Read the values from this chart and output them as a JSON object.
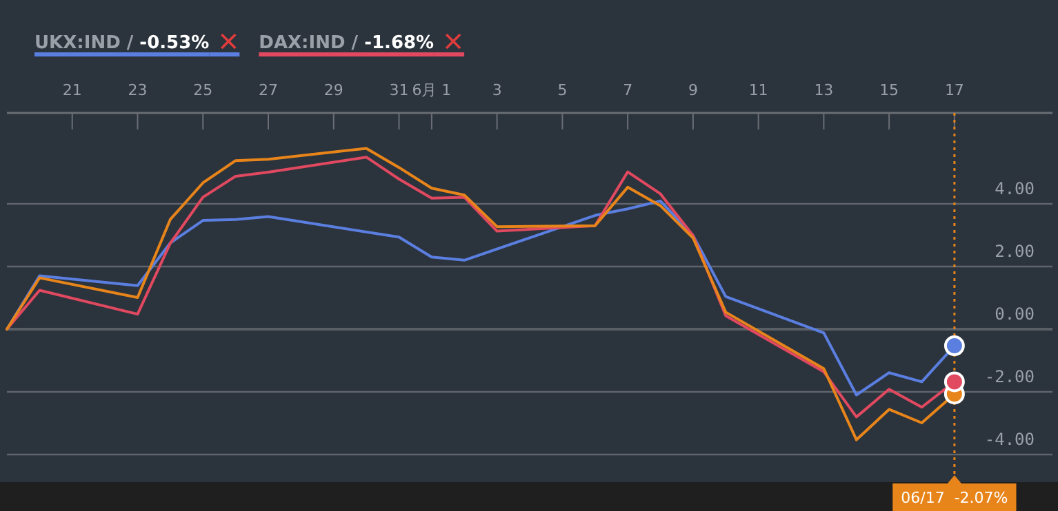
{
  "chart_data": {
    "type": "line",
    "xlim": [
      "--05-19",
      "--06-20"
    ],
    "xticks": [
      {
        "value": "--05-21",
        "label": "21"
      },
      {
        "value": "--05-23",
        "label": "23"
      },
      {
        "value": "--05-25",
        "label": "25"
      },
      {
        "value": "--05-27",
        "label": "27"
      },
      {
        "value": "--05-29",
        "label": "29"
      },
      {
        "value": "--05-31",
        "label": "31"
      },
      {
        "value": "--06-01",
        "label": "6月 1"
      },
      {
        "value": "--06-03",
        "label": "3"
      },
      {
        "value": "--06-05",
        "label": "5"
      },
      {
        "value": "--06-07",
        "label": "7"
      },
      {
        "value": "--06-09",
        "label": "9"
      },
      {
        "value": "--06-11",
        "label": "11"
      },
      {
        "value": "--06-13",
        "label": "13"
      },
      {
        "value": "--06-15",
        "label": "15"
      },
      {
        "value": "--06-17",
        "label": "17"
      }
    ],
    "ylim": [
      -4.88,
      6.9
    ],
    "yticks": [
      {
        "value": 4,
        "label": "4.00"
      },
      {
        "value": 2,
        "label": "2.00"
      },
      {
        "value": 0,
        "label": "0.00"
      },
      {
        "value": -2,
        "label": "-2.00"
      },
      {
        "value": -4,
        "label": "-4.00"
      }
    ],
    "grid": "y",
    "legend": "top left",
    "marker": "none",
    "line_style": "solid",
    "x": [
      "--05-19",
      "--05-20",
      "--05-23",
      "--05-24",
      "--05-25",
      "--05-26",
      "--05-27",
      "--05-30",
      "--05-31",
      "--06-01",
      "--06-02",
      "--06-03",
      "--06-06",
      "--06-07",
      "--06-08",
      "--06-09",
      "--06-10",
      "--06-13",
      "--06-14",
      "--06-15",
      "--06-16",
      "--06-17"
    ],
    "series": [
      {
        "name": "UKX:IND / -0.53%",
        "color": "#5b7fe0",
        "values": [
          0,
          1.7,
          1.39,
          2.75,
          3.47,
          3.5,
          3.59,
          null,
          2.94,
          2.3,
          2.2,
          null,
          3.63,
          3.84,
          4.09,
          2.99,
          1.04,
          -0.12,
          -2.1,
          -1.39,
          -1.68,
          -0.53
        ]
      },
      {
        "name": "DAX:IND / -1.68%",
        "color": "#e0495f",
        "values": [
          0,
          1.24,
          0.48,
          2.74,
          4.21,
          4.88,
          5.01,
          5.49,
          4.79,
          4.18,
          4.21,
          3.13,
          3.3,
          5.02,
          4.32,
          2.99,
          0.43,
          -1.36,
          -2.8,
          -1.92,
          -2.49,
          -1.68
        ]
      },
      {
        "color": "#e8851a",
        "values": [
          0,
          1.64,
          1.01,
          3.5,
          4.67,
          5.38,
          5.42,
          5.77,
          5.16,
          4.5,
          4.28,
          3.27,
          3.3,
          4.53,
          3.94,
          2.91,
          0.54,
          -1.26,
          -3.53,
          -2.56,
          -2.99,
          -2.07
        ]
      }
    ],
    "ref_lines": [
      {
        "axis": "x",
        "value": "--06-17",
        "label": "06/17  -2.07%",
        "color": "#e8851a",
        "line_style": "dotted"
      }
    ]
  }
}
